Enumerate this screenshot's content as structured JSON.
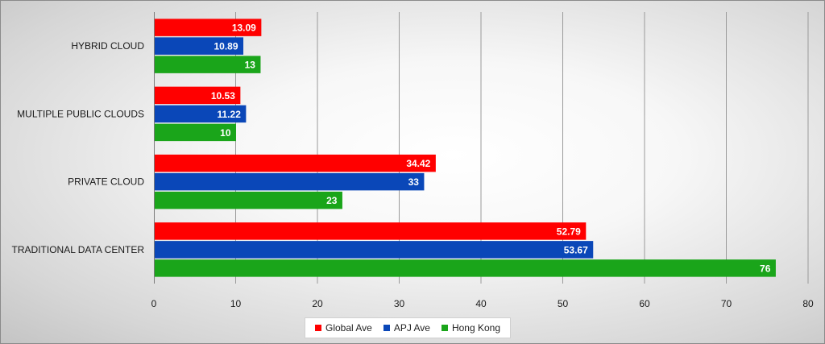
{
  "chart_data": {
    "type": "bar",
    "orientation": "horizontal",
    "title": "",
    "xlabel": "",
    "ylabel": "",
    "categories": [
      "HYBRID CLOUD",
      "MULTIPLE PUBLIC CLOUDS",
      "PRIVATE CLOUD",
      "TRADITIONAL DATA CENTER"
    ],
    "series": [
      {
        "name": "Global Ave",
        "color": "#ff0000",
        "values": [
          13.09,
          10.53,
          34.42,
          52.79
        ],
        "labels": [
          "13.09",
          "10.53",
          "34.42",
          "52.79"
        ]
      },
      {
        "name": "APJ Ave",
        "color": "#0a47b8",
        "values": [
          10.89,
          11.22,
          33,
          53.67
        ],
        "labels": [
          "10.89",
          "11.22",
          "33",
          "53.67"
        ]
      },
      {
        "name": "Hong Kong",
        "color": "#1aa51a",
        "values": [
          13,
          10,
          23,
          76
        ],
        "labels": [
          "13",
          "10",
          "23",
          "76"
        ]
      }
    ],
    "xlim": [
      0,
      80
    ],
    "ticks": [
      0,
      10,
      20,
      30,
      40,
      50,
      60,
      70,
      80
    ],
    "tick_labels": [
      "0",
      "10",
      "20",
      "30",
      "40",
      "50",
      "60",
      "70",
      "80"
    ],
    "grid": true,
    "legend_position": "bottom"
  }
}
